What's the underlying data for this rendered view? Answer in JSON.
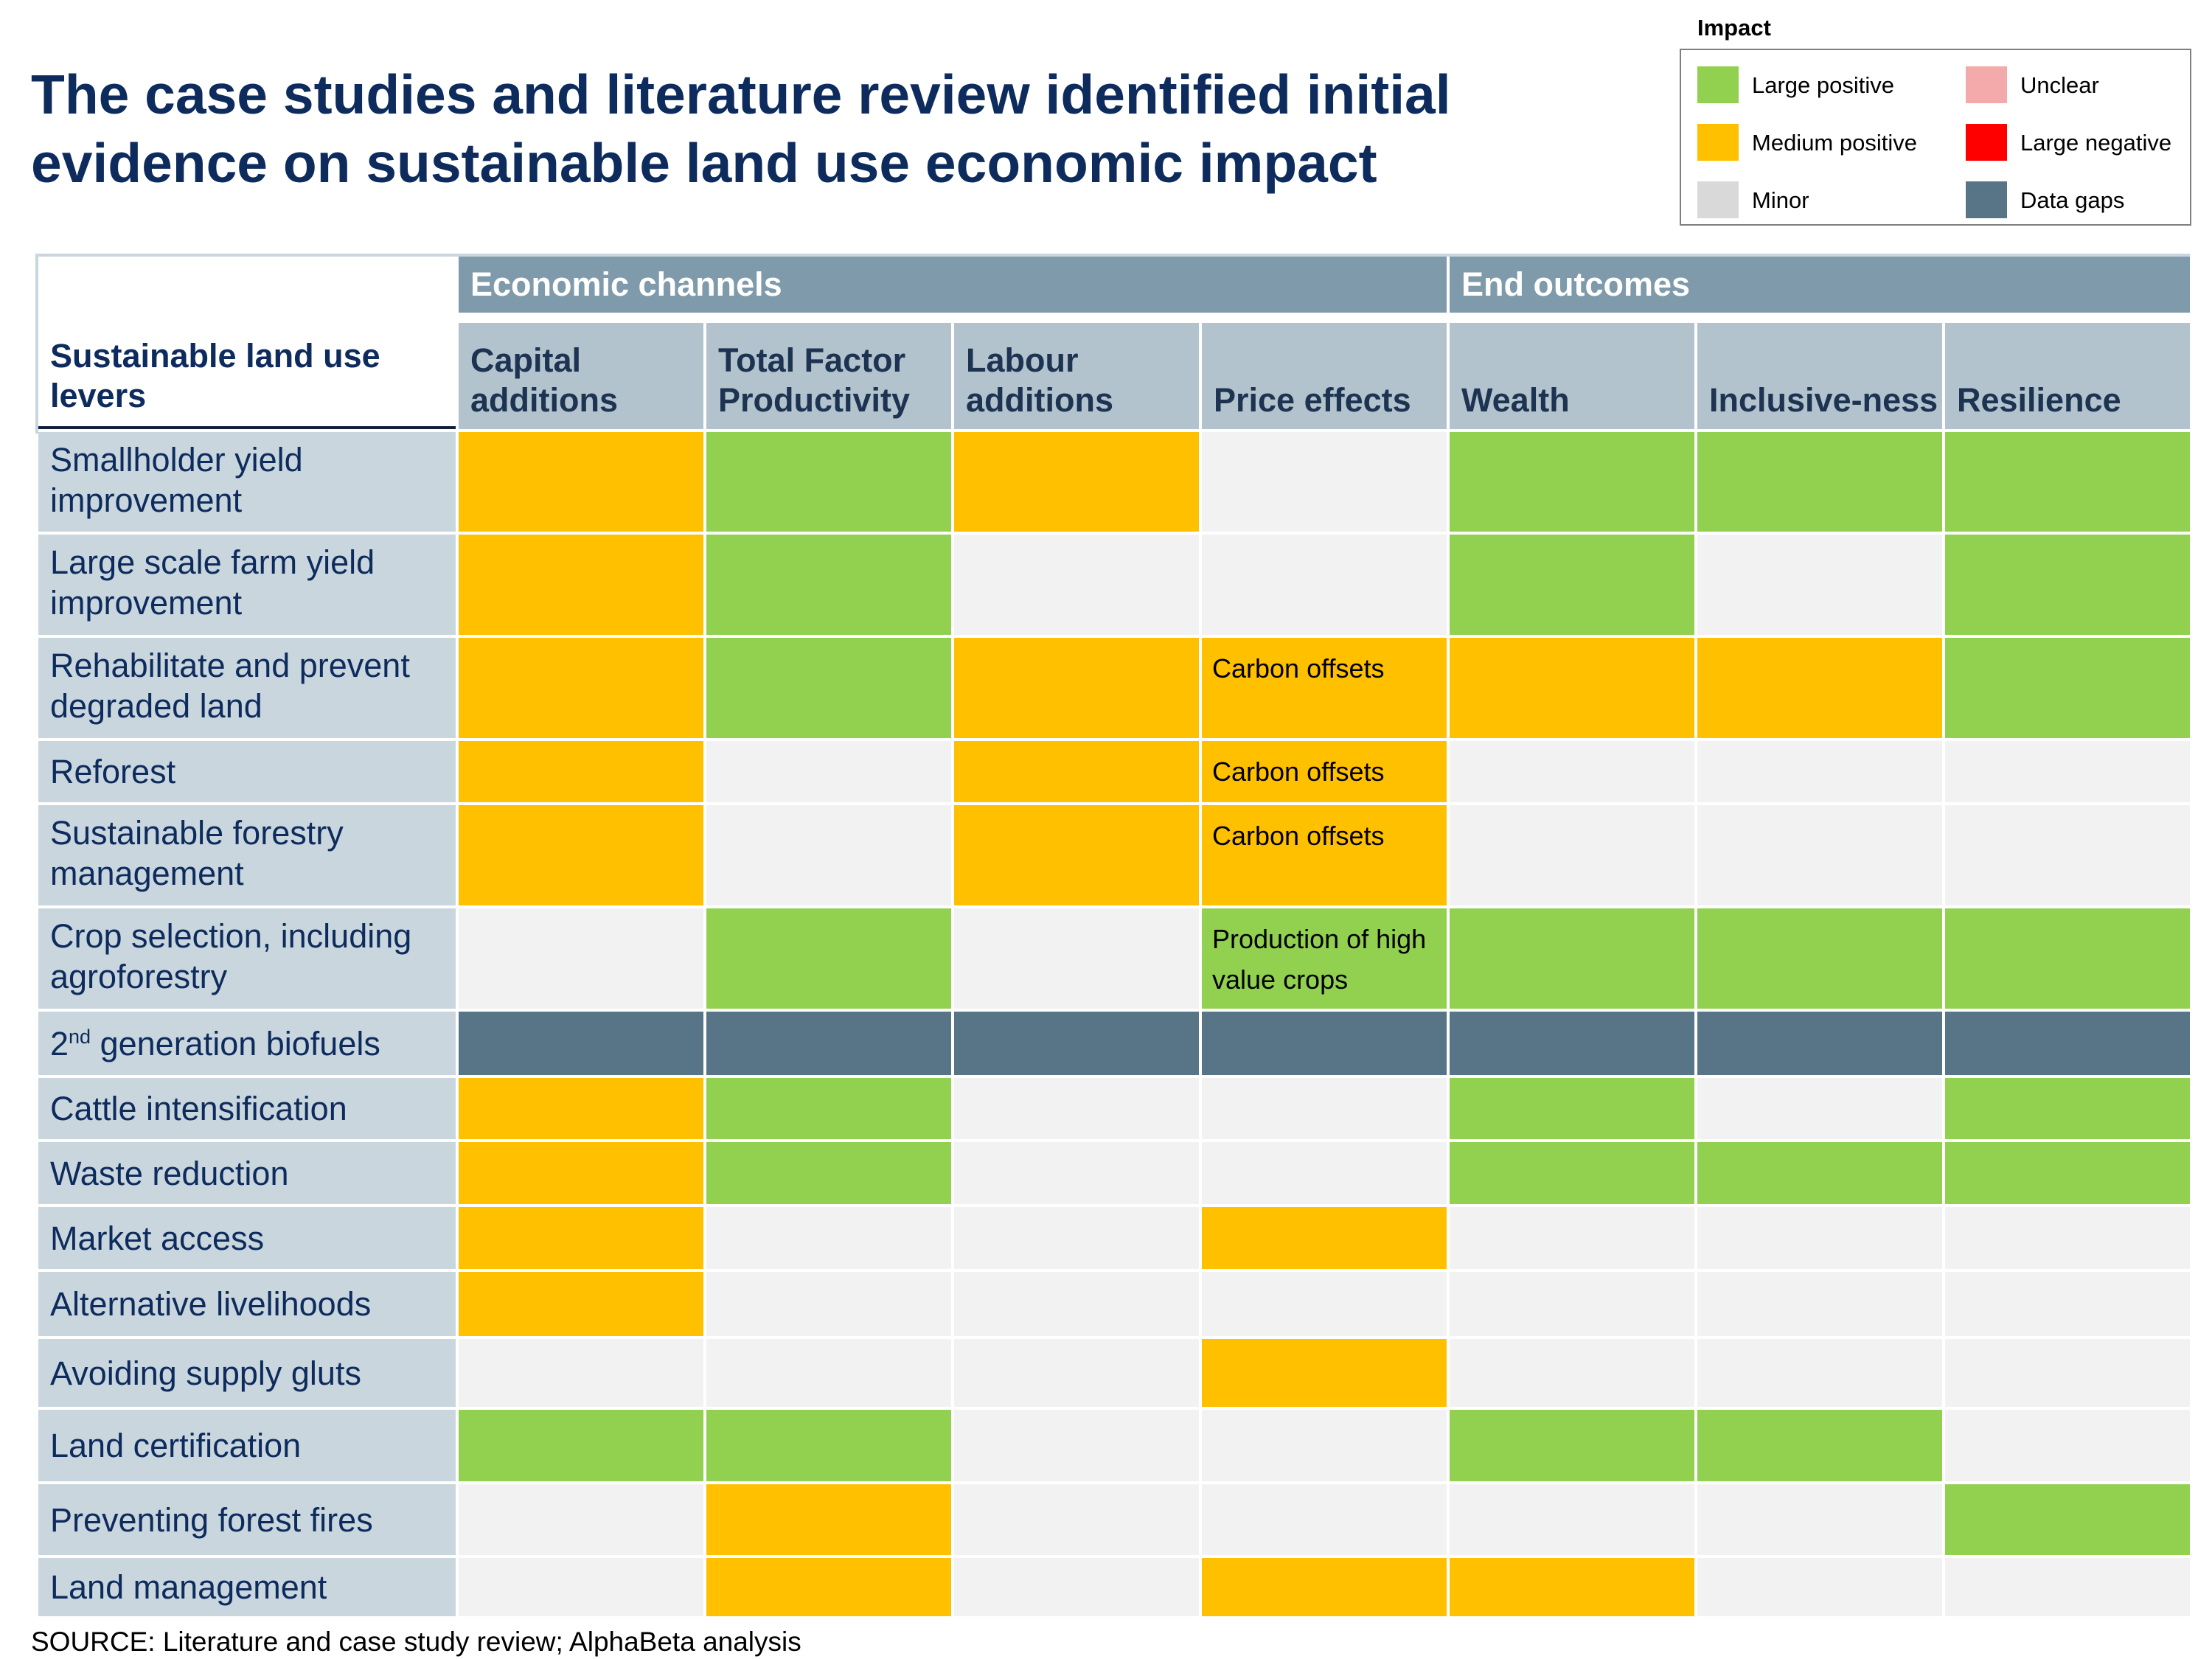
{
  "title": "The case studies and literature review identified initial evidence on sustainable land use economic impact",
  "legend": {
    "heading": "Impact",
    "items": [
      {
        "key": "large_positive",
        "label": "Large positive",
        "color": "#92d050"
      },
      {
        "key": "unclear",
        "label": "Unclear",
        "color": "#f4aaaa"
      },
      {
        "key": "medium_positive",
        "label": "Medium positive",
        "color": "#ffc000"
      },
      {
        "key": "large_negative",
        "label": "Large negative",
        "color": "#ff0000"
      },
      {
        "key": "minor",
        "label": "Minor",
        "color": "#d9d9d9"
      },
      {
        "key": "data_gaps",
        "label": "Data gaps",
        "color": "#587487"
      }
    ]
  },
  "source": "SOURCE: Literature and case study review; AlphaBeta analysis",
  "chart_data": {
    "type": "heatmap",
    "row_header": "Sustainable land use levers",
    "column_groups": [
      {
        "label": "Economic channels",
        "span": 4
      },
      {
        "label": "End outcomes",
        "span": 3
      }
    ],
    "columns": [
      "Capital additions",
      "Total Factor Productivity",
      "Labour additions",
      "Price effects",
      "Wealth",
      "Inclusive-ness",
      "Resilience"
    ],
    "rows": [
      {
        "label": "Smallholder yield improvement",
        "cells": [
          "M",
          "L",
          "M",
          "",
          "L",
          "L",
          "L"
        ]
      },
      {
        "label": "Large scale farm yield improvement",
        "cells": [
          "M",
          "L",
          "",
          "",
          "L",
          "",
          "L"
        ]
      },
      {
        "label": "Rehabilitate and prevent degraded land",
        "cells": [
          "M",
          "L",
          "M",
          "M",
          "M",
          "M",
          "L"
        ],
        "notes": {
          "3": "Carbon offsets"
        }
      },
      {
        "label": "Reforest",
        "cells": [
          "M",
          "",
          "M",
          "M",
          "",
          "",
          ""
        ],
        "notes": {
          "3": "Carbon offsets"
        }
      },
      {
        "label": "Sustainable forestry management",
        "cells": [
          "M",
          "",
          "M",
          "M",
          "",
          "",
          ""
        ],
        "notes": {
          "3": "Carbon offsets"
        }
      },
      {
        "label": "Crop selection, including agroforestry",
        "cells": [
          "",
          "L",
          "",
          "L",
          "L",
          "L",
          "L"
        ],
        "notes": {
          "3": "Production of high value crops"
        }
      },
      {
        "label": "2nd generation biofuels",
        "label_base": "2",
        "label_sup": "nd",
        "label_rest": " generation biofuels",
        "cells": [
          "D",
          "D",
          "D",
          "D",
          "D",
          "D",
          "D"
        ]
      },
      {
        "label": "Cattle intensification",
        "cells": [
          "M",
          "L",
          "",
          "",
          "L",
          "",
          "L"
        ]
      },
      {
        "label": "Waste reduction",
        "cells": [
          "M",
          "L",
          "",
          "",
          "L",
          "L",
          "L"
        ]
      },
      {
        "label": "Market access",
        "cells": [
          "M",
          "",
          "",
          "M",
          "",
          "",
          ""
        ]
      },
      {
        "label": "Alternative livelihoods",
        "cells": [
          "M",
          "",
          "",
          "",
          "",
          "",
          ""
        ]
      },
      {
        "label": "Avoiding supply gluts",
        "cells": [
          "",
          "",
          "",
          "M",
          "",
          "",
          ""
        ]
      },
      {
        "label": "Land certification",
        "cells": [
          "L",
          "L",
          "",
          "",
          "L",
          "L",
          ""
        ]
      },
      {
        "label": "Preventing forest fires",
        "cells": [
          "",
          "M",
          "",
          "",
          "",
          "",
          "L"
        ]
      },
      {
        "label": "Land management",
        "cells": [
          "",
          "M",
          "",
          "M",
          "M",
          "",
          ""
        ]
      }
    ],
    "cell_codes": {
      "L": "Large positive",
      "M": "Medium positive",
      "D": "Data gaps",
      "": "no rating"
    },
    "colors": {
      "L": "#92d050",
      "M": "#ffc000",
      "D": "#587487",
      "empty": "#f2f2f2"
    }
  }
}
